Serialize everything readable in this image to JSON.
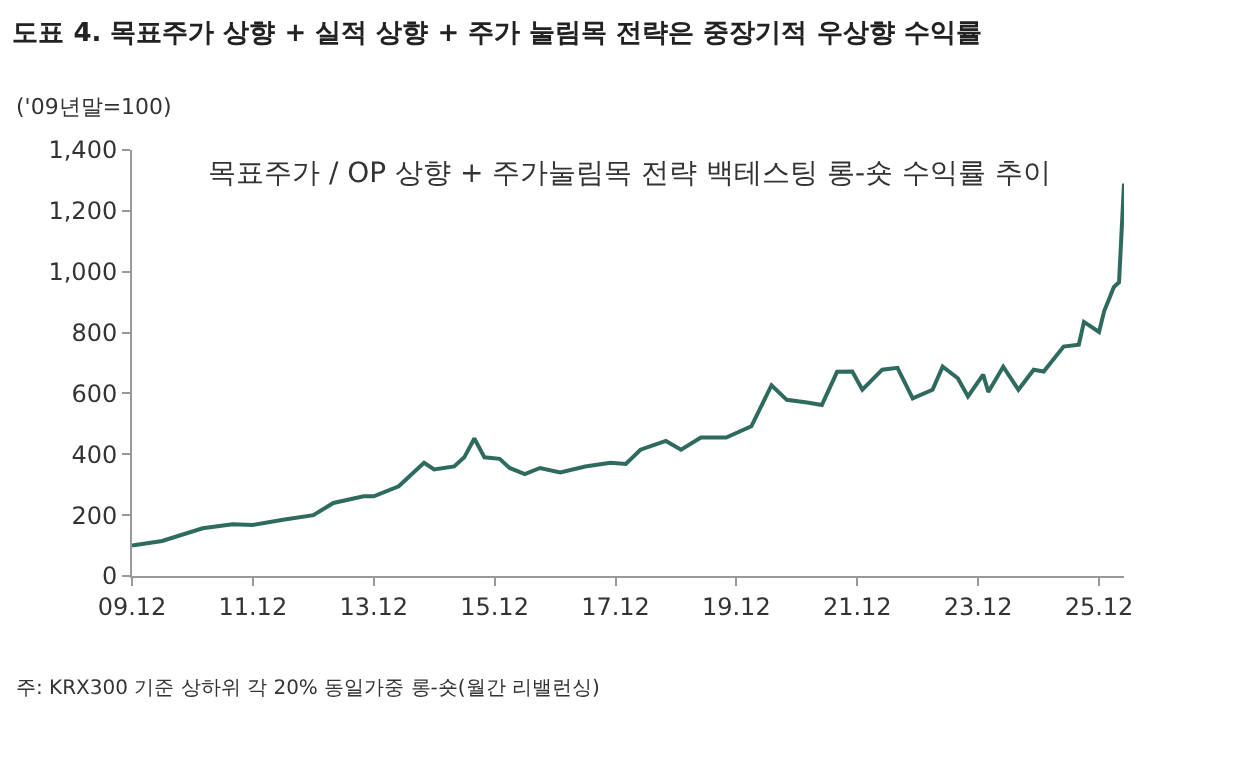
{
  "chart_data": {
    "type": "line",
    "title": "도표 4. 목표주가 상향 + 실적 상향 + 주가 눌림목 전략은 중장기적 우상향 수익률",
    "subtitle": "목표주가 / OP 상향 + 주가눌림목 전략 백테스팅 롱-숏 수익률 추이",
    "ylabel": "('09년말=100)",
    "annotations": [
      "주: KRX300 기준 상하위 각 20% 동일가중 롱-숏(월간 리밸런싱)"
    ],
    "x": [
      "2009-12",
      "2010-06",
      "2011-02",
      "2011-08",
      "2011-12",
      "2012-06",
      "2012-12",
      "2013-04",
      "2013-10",
      "2013-12",
      "2014-05",
      "2014-10",
      "2014-12",
      "2015-04",
      "2015-06",
      "2015-08",
      "2015-10",
      "2016-01",
      "2016-03",
      "2016-06",
      "2016-09",
      "2017-01",
      "2017-06",
      "2017-11",
      "2018-02",
      "2018-05",
      "2018-10",
      "2019-01",
      "2019-05",
      "2019-10",
      "2020-03",
      "2020-07",
      "2020-10",
      "2021-02",
      "2021-05",
      "2021-08",
      "2021-11",
      "2022-01",
      "2022-05",
      "2022-08",
      "2022-11",
      "2023-03",
      "2023-05",
      "2023-08",
      "2023-10",
      "2024-01",
      "2024-02",
      "2024-05",
      "2024-08",
      "2024-11",
      "2025-01",
      "2025-05",
      "2025-08",
      "2025-09",
      "2025-12",
      "2026-01",
      "2026-03",
      "2026-04",
      "2026-05"
    ],
    "series": [
      {
        "color": "#2e6b5e",
        "values": [
          100,
          115,
          157,
          170,
          168,
          185,
          200,
          240,
          262,
          262,
          295,
          372,
          350,
          360,
          390,
          452,
          390,
          385,
          355,
          335,
          355,
          340,
          360,
          372,
          368,
          415,
          444,
          415,
          455,
          455,
          492,
          627,
          579,
          570,
          562,
          671,
          672,
          612,
          678,
          684,
          584,
          612,
          688,
          650,
          590,
          662,
          605,
          688,
          612,
          678,
          672,
          754,
          760,
          835,
          802,
          870,
          950,
          965,
          1290
        ]
      }
    ],
    "xlim": [
      "2009-12",
      "2026-05"
    ],
    "xticks": [
      {
        "value": "2009-12",
        "label": "09.12"
      },
      {
        "value": "2011-12",
        "label": "11.12"
      },
      {
        "value": "2013-12",
        "label": "13.12"
      },
      {
        "value": "2015-12",
        "label": "15.12"
      },
      {
        "value": "2017-12",
        "label": "17.12"
      },
      {
        "value": "2019-12",
        "label": "19.12"
      },
      {
        "value": "2021-12",
        "label": "21.12"
      },
      {
        "value": "2023-12",
        "label": "23.12"
      },
      {
        "value": "2025-12",
        "label": "25.12"
      }
    ],
    "ylim": [
      0,
      1400
    ],
    "yticks": [
      0,
      200,
      400,
      600,
      800,
      {
        "value": 1000,
        "label": "1,000"
      },
      {
        "value": 1200,
        "label": "1,200"
      },
      {
        "value": 1400,
        "label": "1,400"
      }
    ],
    "marker": "none",
    "line_style": "solid"
  }
}
